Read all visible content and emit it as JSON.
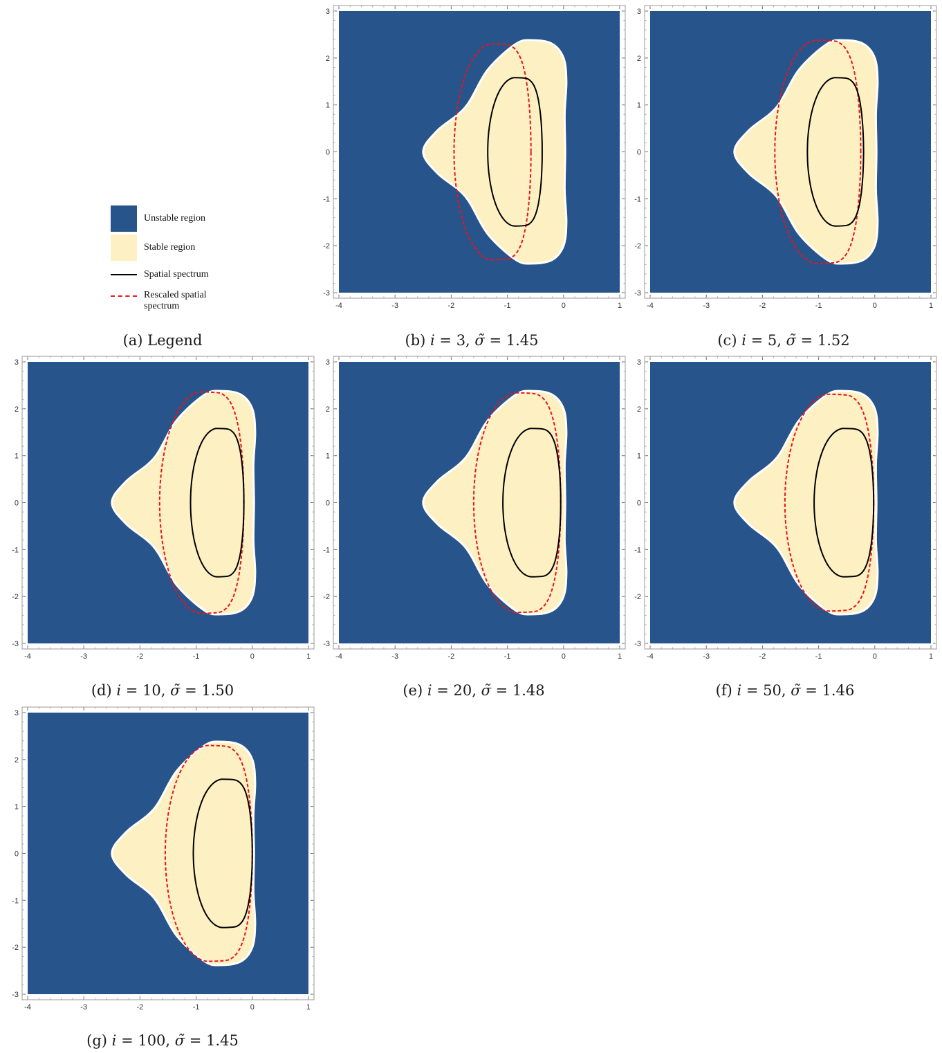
{
  "colors": {
    "unstable": "#27548a",
    "stable": "#fdf0c2",
    "boundary": "#ffffff",
    "spectrum": "#000000",
    "rescaled": "#e8141e",
    "frame": "#9a9a9a"
  },
  "legend": {
    "caption": "(a) Legend",
    "items": [
      {
        "label": "Unstable region",
        "kind": "fill",
        "color": "#27548a"
      },
      {
        "label": "Stable region",
        "kind": "fill",
        "color": "#fdf0c2"
      },
      {
        "label": "Spatial spectrum",
        "kind": "solid-line",
        "color": "#000000"
      },
      {
        "label": "Rescaled spatial spectrum",
        "kind": "dashed-line",
        "color": "#e8141e"
      }
    ]
  },
  "chart_data": [
    {
      "type": "area",
      "panel": "b",
      "caption": "(b) i = 3, σ̃ = 1.45",
      "i": 3,
      "sigma": 1.45,
      "xlim": [
        -4,
        1
      ],
      "ylim": [
        -3,
        3
      ],
      "xticks": [
        -4,
        -3,
        -2,
        -1,
        0,
        1
      ],
      "yticks": [
        -3,
        -2,
        -1,
        0,
        1,
        2,
        3
      ],
      "stable_region": {
        "left_tip": -2.5,
        "right_edge": 0.05,
        "y_extent": 2.38
      },
      "spatial_spectrum": {
        "left": -1.35,
        "right": -0.38,
        "y_extent": 1.58
      },
      "rescaled_spectrum": {
        "left": -1.95,
        "right": -0.58,
        "y_extent": 2.3
      }
    },
    {
      "type": "area",
      "panel": "c",
      "caption": "(c) i = 5, σ̃ = 1.52",
      "i": 5,
      "sigma": 1.52,
      "xlim": [
        -4,
        1
      ],
      "ylim": [
        -3,
        3
      ],
      "xticks": [
        -4,
        -3,
        -2,
        -1,
        0,
        1
      ],
      "yticks": [
        -3,
        -2,
        -1,
        0,
        1,
        2,
        3
      ],
      "stable_region": {
        "left_tip": -2.5,
        "right_edge": 0.05,
        "y_extent": 2.38
      },
      "spatial_spectrum": {
        "left": -1.2,
        "right": -0.2,
        "y_extent": 1.58
      },
      "rescaled_spectrum": {
        "left": -1.78,
        "right": -0.25,
        "y_extent": 2.38
      }
    },
    {
      "type": "area",
      "panel": "d",
      "caption": "(d) i = 10, σ̃ = 1.50",
      "i": 10,
      "sigma": 1.5,
      "xlim": [
        -4,
        1
      ],
      "ylim": [
        -3,
        3
      ],
      "xticks": [
        -4,
        -3,
        -2,
        -1,
        0,
        1
      ],
      "yticks": [
        -3,
        -2,
        -1,
        0,
        1,
        2,
        3
      ],
      "stable_region": {
        "left_tip": -2.5,
        "right_edge": 0.05,
        "y_extent": 2.38
      },
      "spatial_spectrum": {
        "left": -1.1,
        "right": -0.15,
        "y_extent": 1.58
      },
      "rescaled_spectrum": {
        "left": -1.65,
        "right": -0.15,
        "y_extent": 2.36
      }
    },
    {
      "type": "area",
      "panel": "e",
      "caption": "(e) i = 20, σ̃ = 1.48",
      "i": 20,
      "sigma": 1.48,
      "xlim": [
        -4,
        1
      ],
      "ylim": [
        -3,
        3
      ],
      "xticks": [
        -4,
        -3,
        -2,
        -1,
        0,
        1
      ],
      "yticks": [
        -3,
        -2,
        -1,
        0,
        1,
        2,
        3
      ],
      "stable_region": {
        "left_tip": -2.5,
        "right_edge": 0.05,
        "y_extent": 2.38
      },
      "spatial_spectrum": {
        "left": -1.08,
        "right": -0.05,
        "y_extent": 1.58
      },
      "rescaled_spectrum": {
        "left": -1.6,
        "right": -0.05,
        "y_extent": 2.34
      }
    },
    {
      "type": "area",
      "panel": "f",
      "caption": "(f) i = 50, σ̃ = 1.46",
      "i": 50,
      "sigma": 1.46,
      "xlim": [
        -4,
        1
      ],
      "ylim": [
        -3,
        3
      ],
      "xticks": [
        -4,
        -3,
        -2,
        -1,
        0,
        1
      ],
      "yticks": [
        -3,
        -2,
        -1,
        0,
        1,
        2,
        3
      ],
      "stable_region": {
        "left_tip": -2.5,
        "right_edge": 0.05,
        "y_extent": 2.38
      },
      "spatial_spectrum": {
        "left": -1.08,
        "right": -0.02,
        "y_extent": 1.58
      },
      "rescaled_spectrum": {
        "left": -1.6,
        "right": -0.02,
        "y_extent": 2.31
      }
    },
    {
      "type": "area",
      "panel": "g",
      "caption": "(g) i = 100, σ̃ = 1.45",
      "i": 100,
      "sigma": 1.45,
      "xlim": [
        -4,
        1
      ],
      "ylim": [
        -3,
        3
      ],
      "xticks": [
        -4,
        -3,
        -2,
        -1,
        0,
        1
      ],
      "yticks": [
        -3,
        -2,
        -1,
        0,
        1,
        2,
        3
      ],
      "stable_region": {
        "left_tip": -2.5,
        "right_edge": 0.05,
        "y_extent": 2.38
      },
      "spatial_spectrum": {
        "left": -1.05,
        "right": 0.0,
        "y_extent": 1.58
      },
      "rescaled_spectrum": {
        "left": -1.55,
        "right": 0.0,
        "y_extent": 2.3
      }
    }
  ]
}
